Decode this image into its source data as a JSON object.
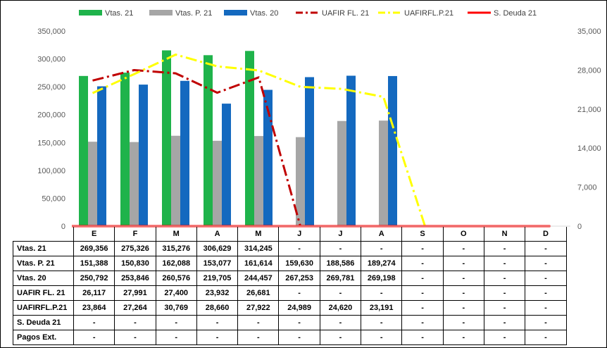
{
  "chart_data": {
    "type": "bar",
    "categories": [
      "E",
      "F",
      "M",
      "A",
      "M",
      "J",
      "J",
      "A",
      "S",
      "O",
      "N",
      "D"
    ],
    "series": [
      {
        "name": "Vtas. 21",
        "kind": "bar",
        "color": "#1fb34b",
        "axis": "left",
        "values": [
          269356,
          275326,
          315276,
          306629,
          314245,
          null,
          null,
          null,
          null,
          null,
          null,
          null
        ],
        "labels": [
          "269,356",
          "275,326",
          "315,276",
          "306,629",
          "314,245",
          "-",
          "-",
          "-",
          "-",
          "-",
          "-",
          "-"
        ]
      },
      {
        "name": "Vtas. P. 21",
        "kind": "bar",
        "color": "#a6a6a6",
        "axis": "left",
        "values": [
          151388,
          150830,
          162088,
          153077,
          161614,
          159630,
          188586,
          189274,
          null,
          null,
          null,
          null
        ],
        "labels": [
          "151,388",
          "150,830",
          "162,088",
          "153,077",
          "161,614",
          "159,630",
          "188,586",
          "189,274",
          "-",
          "-",
          "-",
          "-"
        ]
      },
      {
        "name": "Vtas. 20",
        "kind": "bar",
        "color": "#1469bf",
        "axis": "left",
        "values": [
          250792,
          253846,
          260576,
          219705,
          244457,
          267253,
          269781,
          269198,
          null,
          null,
          null,
          null
        ],
        "labels": [
          "250,792",
          "253,846",
          "260,576",
          "219,705",
          "244,457",
          "267,253",
          "269,781",
          "269,198",
          "-",
          "-",
          "-",
          "-"
        ]
      },
      {
        "name": "UAFIR FL. 21",
        "kind": "line",
        "color": "#c00000",
        "dash": "dashdot",
        "axis": "right",
        "values": [
          26117,
          27991,
          27400,
          23932,
          26681,
          0,
          null,
          null,
          null,
          null,
          null,
          null
        ],
        "labels": [
          "26,117",
          "27,991",
          "27,400",
          "23,932",
          "26,681",
          "-",
          "-",
          "-",
          "-",
          "-",
          "-",
          "-"
        ]
      },
      {
        "name": "UAFIRFL.P.21",
        "kind": "line",
        "color": "#ffff00",
        "dash": "dashdot",
        "axis": "right",
        "values": [
          23864,
          27264,
          30769,
          28660,
          27922,
          24989,
          24620,
          23191,
          0,
          null,
          null,
          null
        ],
        "labels": [
          "23,864",
          "27,264",
          "30,769",
          "28,660",
          "27,922",
          "24,989",
          "24,620",
          "23,191",
          "-",
          "-",
          "-",
          "-"
        ]
      },
      {
        "name": "S. Deuda 21",
        "kind": "line",
        "color": "#ff0000",
        "dash": "solid",
        "axis": "right",
        "values": [
          0,
          0,
          0,
          0,
          0,
          0,
          0,
          0,
          0,
          0,
          0,
          0
        ],
        "labels": [
          "-",
          "-",
          "-",
          "-",
          "-",
          "-",
          "-",
          "-",
          "-",
          "-",
          "-",
          "-"
        ]
      },
      {
        "name": "Pagos Ext.",
        "kind": "table-only",
        "labels": [
          "-",
          "-",
          "-",
          "-",
          "-",
          "-",
          "-",
          "-",
          "-",
          "-",
          "-",
          "-"
        ]
      }
    ],
    "y_left": {
      "min": 0,
      "max": 350000,
      "step": 50000,
      "ticks": [
        "0",
        "50,000",
        "100,000",
        "150,000",
        "200,000",
        "250,000",
        "300,000",
        "350,000"
      ]
    },
    "y_right": {
      "min": 0,
      "max": 35000,
      "step": 7000,
      "ticks": [
        "0",
        "7,000",
        "14,000",
        "21,000",
        "28,000",
        "35,000"
      ]
    },
    "grid": false,
    "legend": "top"
  }
}
